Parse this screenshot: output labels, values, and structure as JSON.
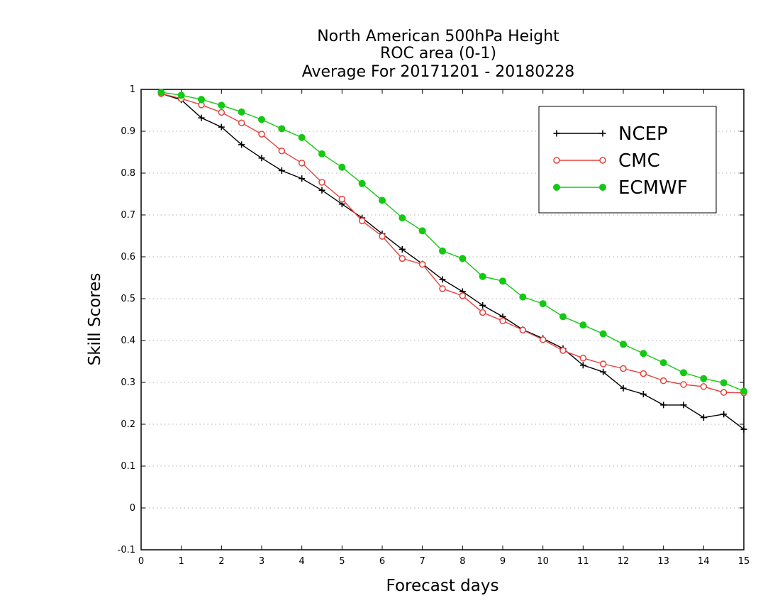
{
  "chart_data": {
    "type": "line",
    "title_lines": [
      "North American 500hPa Height",
      "ROC area (0-1)",
      "Average For 20171201 - 20180228"
    ],
    "xlabel": "Forecast days",
    "ylabel": "Skill Scores",
    "xlim": [
      0,
      15
    ],
    "ylim": [
      -0.1,
      1
    ],
    "x_ticks": [
      "0",
      "1",
      "2",
      "3",
      "4",
      "5",
      "6",
      "7",
      "8",
      "9",
      "10",
      "11",
      "12",
      "13",
      "14",
      "15"
    ],
    "y_ticks": [
      "-0.1",
      "0",
      "0.1",
      "0.2",
      "0.3",
      "0.4",
      "0.5",
      "0.6",
      "0.7",
      "0.8",
      "0.9",
      "1"
    ],
    "y_tick_values": [
      -0.1,
      0,
      0.1,
      0.2,
      0.3,
      0.4,
      0.5,
      0.6,
      0.7,
      0.8,
      0.9,
      1
    ],
    "grid": "horizontal dotted",
    "legend_position": "top-right",
    "x": [
      0.5,
      1,
      1.5,
      2,
      2.5,
      3,
      3.5,
      4,
      4.5,
      5,
      5.5,
      6,
      6.5,
      7,
      7.5,
      8,
      8.5,
      9,
      9.5,
      10,
      10.5,
      11,
      11.5,
      12,
      12.5,
      13,
      13.5,
      14,
      14.5,
      15
    ],
    "series": [
      {
        "name": "NCEP",
        "color": "#000000",
        "marker": "plus",
        "values": [
          0.99,
          0.975,
          0.932,
          0.91,
          0.868,
          0.836,
          0.806,
          0.787,
          0.759,
          0.726,
          0.693,
          0.655,
          0.618,
          0.583,
          0.546,
          0.517,
          0.484,
          0.457,
          0.426,
          0.405,
          0.381,
          0.341,
          0.325,
          0.286,
          0.272,
          0.246,
          0.246,
          0.216,
          0.224,
          0.188
        ]
      },
      {
        "name": "CMC",
        "color": "#e8403a",
        "marker": "open-circle",
        "values": [
          0.99,
          0.978,
          0.963,
          0.945,
          0.92,
          0.893,
          0.853,
          0.824,
          0.778,
          0.738,
          0.686,
          0.649,
          0.596,
          0.582,
          0.524,
          0.507,
          0.467,
          0.447,
          0.425,
          0.402,
          0.376,
          0.358,
          0.344,
          0.333,
          0.321,
          0.304,
          0.295,
          0.29,
          0.276,
          0.275
        ]
      },
      {
        "name": "ECMWF",
        "color": "#14c814",
        "marker": "filled-circle",
        "values": [
          0.993,
          0.986,
          0.976,
          0.962,
          0.946,
          0.928,
          0.906,
          0.885,
          0.846,
          0.814,
          0.775,
          0.735,
          0.693,
          0.662,
          0.614,
          0.596,
          0.553,
          0.542,
          0.504,
          0.488,
          0.457,
          0.437,
          0.416,
          0.391,
          0.369,
          0.347,
          0.323,
          0.309,
          0.299,
          0.279
        ]
      }
    ]
  }
}
